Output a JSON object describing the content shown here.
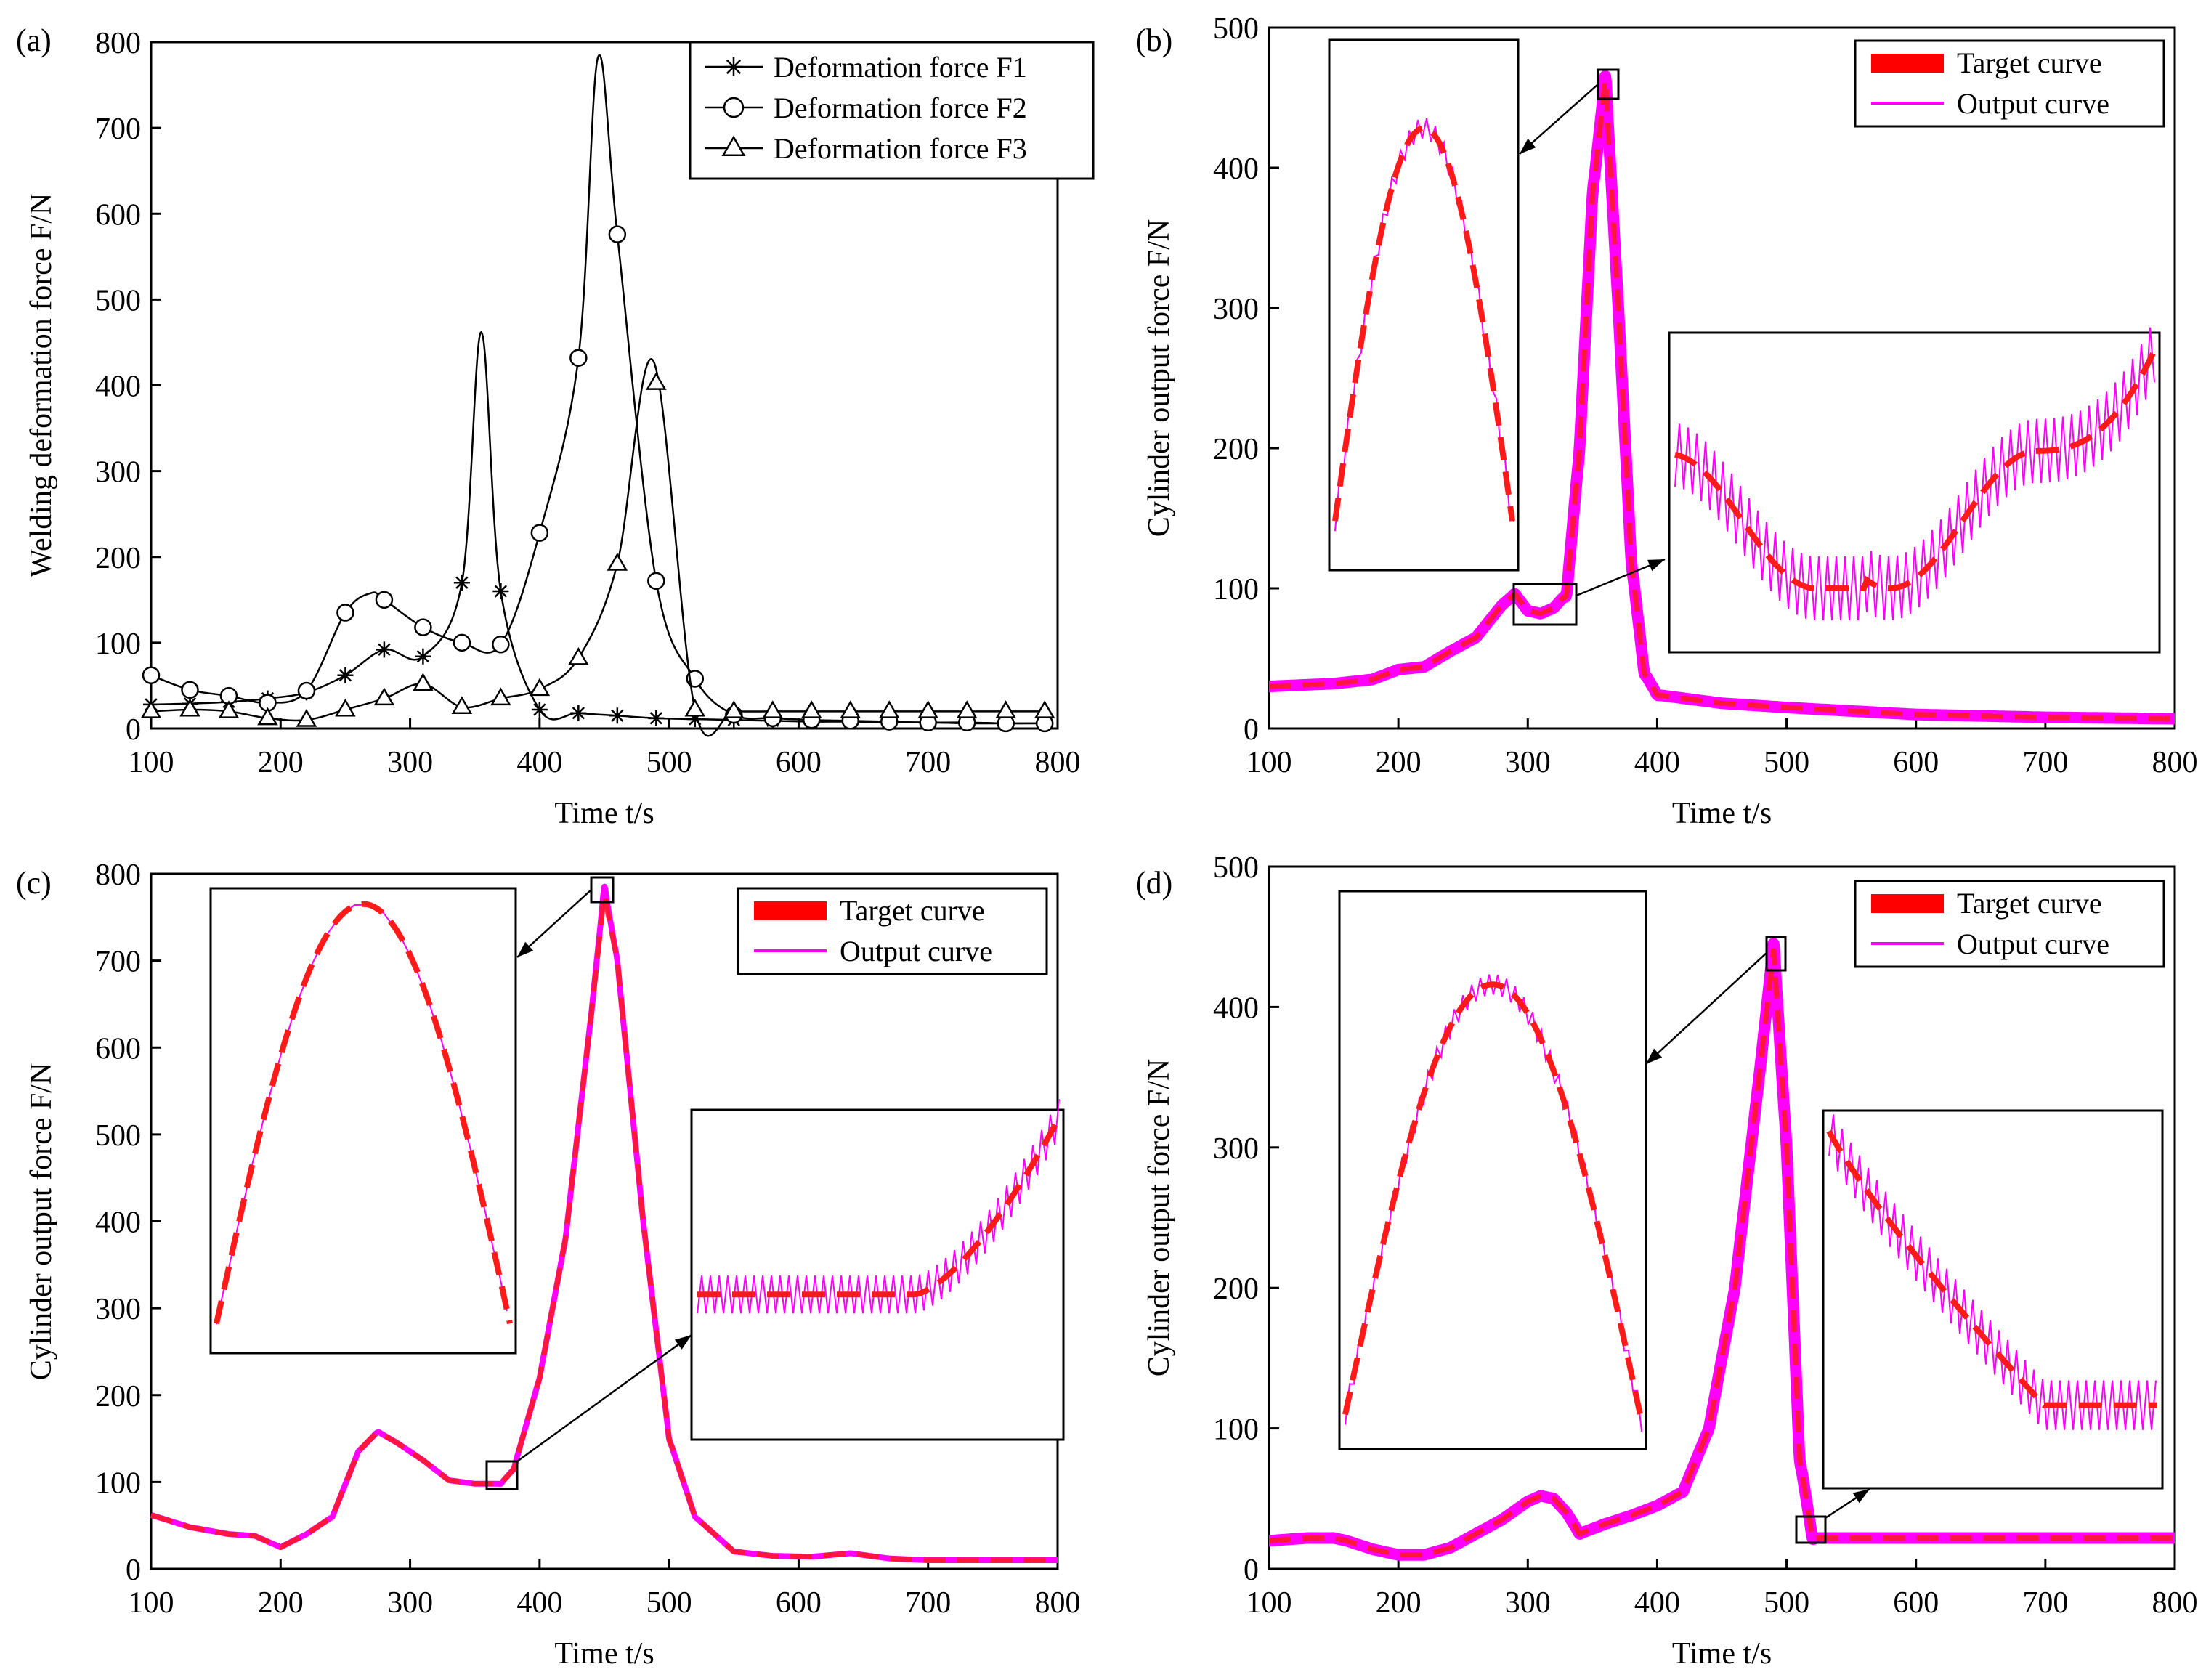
{
  "chart_data": [
    {
      "panel": "(a)",
      "type": "line",
      "xlabel": "Time t/s",
      "ylabel": "Welding deformation force F/N",
      "xlim": [
        100,
        800
      ],
      "ylim": [
        0,
        800
      ],
      "xticks": [
        100,
        200,
        300,
        400,
        500,
        600,
        700,
        800
      ],
      "yticks": [
        0,
        100,
        200,
        300,
        400,
        500,
        600,
        700,
        800
      ],
      "legend_position": "top-right",
      "series": [
        {
          "name": "Deformation force F1",
          "marker": "star",
          "x": [
            100,
            130,
            160,
            190,
            220,
            250,
            280,
            310,
            340,
            355,
            370,
            400,
            430,
            460,
            490,
            520,
            550,
            580,
            610,
            640,
            670,
            700,
            730,
            760,
            790
          ],
          "y": [
            28,
            29,
            31,
            35,
            42,
            62,
            92,
            84,
            170,
            462,
            160,
            22,
            18,
            15,
            12,
            11,
            10,
            9,
            8,
            8,
            7,
            7,
            6,
            6,
            6
          ],
          "markers_x": [
            100,
            130,
            160,
            190,
            220,
            250,
            280,
            310,
            340,
            370,
            400,
            430,
            460,
            490,
            520,
            550,
            580,
            610,
            640,
            670,
            700,
            730,
            760,
            790
          ]
        },
        {
          "name": "Deformation force F2",
          "marker": "circle",
          "x": [
            100,
            130,
            160,
            190,
            220,
            250,
            270,
            280,
            310,
            340,
            370,
            400,
            430,
            445,
            460,
            490,
            520,
            550,
            580,
            610,
            640,
            670,
            700,
            730,
            760,
            790
          ],
          "y": [
            62,
            45,
            38,
            30,
            44,
            135,
            158,
            150,
            118,
            100,
            98,
            228,
            432,
            782,
            576,
            172,
            58,
            16,
            12,
            10,
            9,
            8,
            7,
            7,
            6,
            6
          ],
          "markers_x": [
            100,
            130,
            160,
            190,
            220,
            250,
            280,
            310,
            340,
            370,
            400,
            430,
            460,
            490,
            520,
            550,
            580,
            610,
            640,
            670,
            700,
            730,
            760,
            790
          ]
        },
        {
          "name": "Deformation force F3",
          "marker": "triangle",
          "x": [
            100,
            130,
            160,
            190,
            220,
            250,
            280,
            310,
            340,
            370,
            400,
            430,
            460,
            488,
            520,
            550,
            580,
            610,
            640,
            670,
            700,
            730,
            760,
            790
          ],
          "y": [
            20,
            22,
            20,
            12,
            10,
            22,
            35,
            52,
            25,
            35,
            46,
            82,
            192,
            428,
            22,
            20,
            20,
            20,
            20,
            20,
            20,
            20,
            20,
            20
          ],
          "markers_x": [
            100,
            130,
            160,
            190,
            220,
            250,
            280,
            310,
            340,
            370,
            400,
            430,
            460,
            490,
            520,
            550,
            580,
            610,
            640,
            670,
            700,
            730,
            760,
            790
          ]
        }
      ]
    },
    {
      "panel": "(b)",
      "type": "line",
      "xlabel": "Time t/s",
      "ylabel": "Cylinder output force F/N",
      "xlim": [
        100,
        800
      ],
      "ylim": [
        0,
        500
      ],
      "xticks": [
        100,
        200,
        300,
        400,
        500,
        600,
        700,
        800
      ],
      "yticks": [
        0,
        100,
        200,
        300,
        400,
        500
      ],
      "legend_position": "top-right",
      "series": [
        {
          "name": "Target curve",
          "x": [
            100,
            150,
            180,
            200,
            220,
            240,
            260,
            280,
            290,
            300,
            310,
            320,
            330,
            340,
            350,
            360,
            370,
            380,
            390,
            400,
            450,
            500,
            600,
            700,
            800
          ],
          "y": [
            30,
            32,
            35,
            42,
            44,
            55,
            65,
            88,
            96,
            84,
            82,
            86,
            96,
            200,
            380,
            462,
            300,
            120,
            40,
            24,
            18,
            15,
            10,
            8,
            7
          ]
        },
        {
          "name": "Output curve",
          "x": [
            100,
            150,
            180,
            200,
            220,
            240,
            260,
            280,
            290,
            300,
            310,
            320,
            330,
            340,
            350,
            360,
            370,
            380,
            390,
            400,
            450,
            500,
            600,
            700,
            800
          ],
          "y": [
            30,
            32,
            35,
            42,
            44,
            55,
            65,
            88,
            96,
            84,
            82,
            86,
            96,
            200,
            380,
            465,
            300,
            120,
            40,
            24,
            18,
            15,
            10,
            8,
            7
          ]
        }
      ]
    },
    {
      "panel": "(c)",
      "type": "line",
      "xlabel": "Time t/s",
      "ylabel": "Cylinder output force F/N",
      "xlim": [
        100,
        800
      ],
      "ylim": [
        0,
        800
      ],
      "xticks": [
        100,
        200,
        300,
        400,
        500,
        600,
        700,
        800
      ],
      "yticks": [
        0,
        100,
        200,
        300,
        400,
        500,
        600,
        700,
        800
      ],
      "legend_position": "top-right",
      "series": [
        {
          "name": "Target curve",
          "x": [
            100,
            130,
            160,
            180,
            200,
            220,
            240,
            260,
            275,
            290,
            310,
            330,
            350,
            370,
            380,
            400,
            420,
            440,
            450,
            460,
            480,
            500,
            520,
            550,
            580,
            610,
            640,
            670,
            700,
            750,
            800
          ],
          "y": [
            62,
            48,
            40,
            38,
            25,
            40,
            60,
            135,
            158,
            145,
            125,
            102,
            98,
            98,
            115,
            220,
            380,
            640,
            775,
            700,
            400,
            150,
            60,
            20,
            15,
            14,
            18,
            12,
            10,
            10,
            10
          ]
        },
        {
          "name": "Output curve",
          "x": [
            100,
            130,
            160,
            180,
            200,
            220,
            240,
            260,
            275,
            290,
            310,
            330,
            350,
            370,
            380,
            400,
            420,
            440,
            450,
            460,
            480,
            500,
            520,
            550,
            580,
            610,
            640,
            670,
            700,
            750,
            800
          ],
          "y": [
            62,
            48,
            40,
            38,
            25,
            40,
            60,
            135,
            158,
            145,
            125,
            102,
            98,
            98,
            115,
            220,
            380,
            640,
            785,
            700,
            400,
            150,
            60,
            20,
            15,
            14,
            18,
            12,
            10,
            10,
            10
          ]
        }
      ]
    },
    {
      "panel": "(d)",
      "type": "line",
      "xlabel": "Time t/s",
      "ylabel": "Cylinder output force F/N",
      "xlim": [
        100,
        800
      ],
      "ylim": [
        0,
        500
      ],
      "xticks": [
        100,
        200,
        300,
        400,
        500,
        600,
        700,
        800
      ],
      "yticks": [
        0,
        100,
        200,
        300,
        400,
        500
      ],
      "legend_position": "top-right",
      "series": [
        {
          "name": "Target curve",
          "x": [
            100,
            130,
            150,
            160,
            180,
            200,
            220,
            240,
            260,
            280,
            300,
            310,
            320,
            330,
            340,
            360,
            380,
            400,
            420,
            440,
            460,
            480,
            490,
            500,
            510,
            520,
            540,
            600,
            700,
            800
          ],
          "y": [
            20,
            22,
            22,
            20,
            14,
            10,
            10,
            15,
            25,
            35,
            48,
            52,
            50,
            40,
            25,
            32,
            38,
            45,
            55,
            100,
            200,
            360,
            440,
            300,
            80,
            22,
            22,
            22,
            22,
            22
          ]
        },
        {
          "name": "Output curve",
          "x": [
            100,
            130,
            150,
            160,
            180,
            200,
            220,
            240,
            260,
            280,
            300,
            310,
            320,
            330,
            340,
            360,
            380,
            400,
            420,
            440,
            460,
            480,
            490,
            500,
            510,
            520,
            540,
            600,
            700,
            800
          ],
          "y": [
            20,
            22,
            22,
            20,
            14,
            10,
            10,
            15,
            25,
            35,
            48,
            52,
            50,
            40,
            25,
            32,
            38,
            45,
            55,
            100,
            200,
            360,
            445,
            300,
            80,
            22,
            22,
            22,
            22,
            22
          ]
        }
      ]
    }
  ]
}
